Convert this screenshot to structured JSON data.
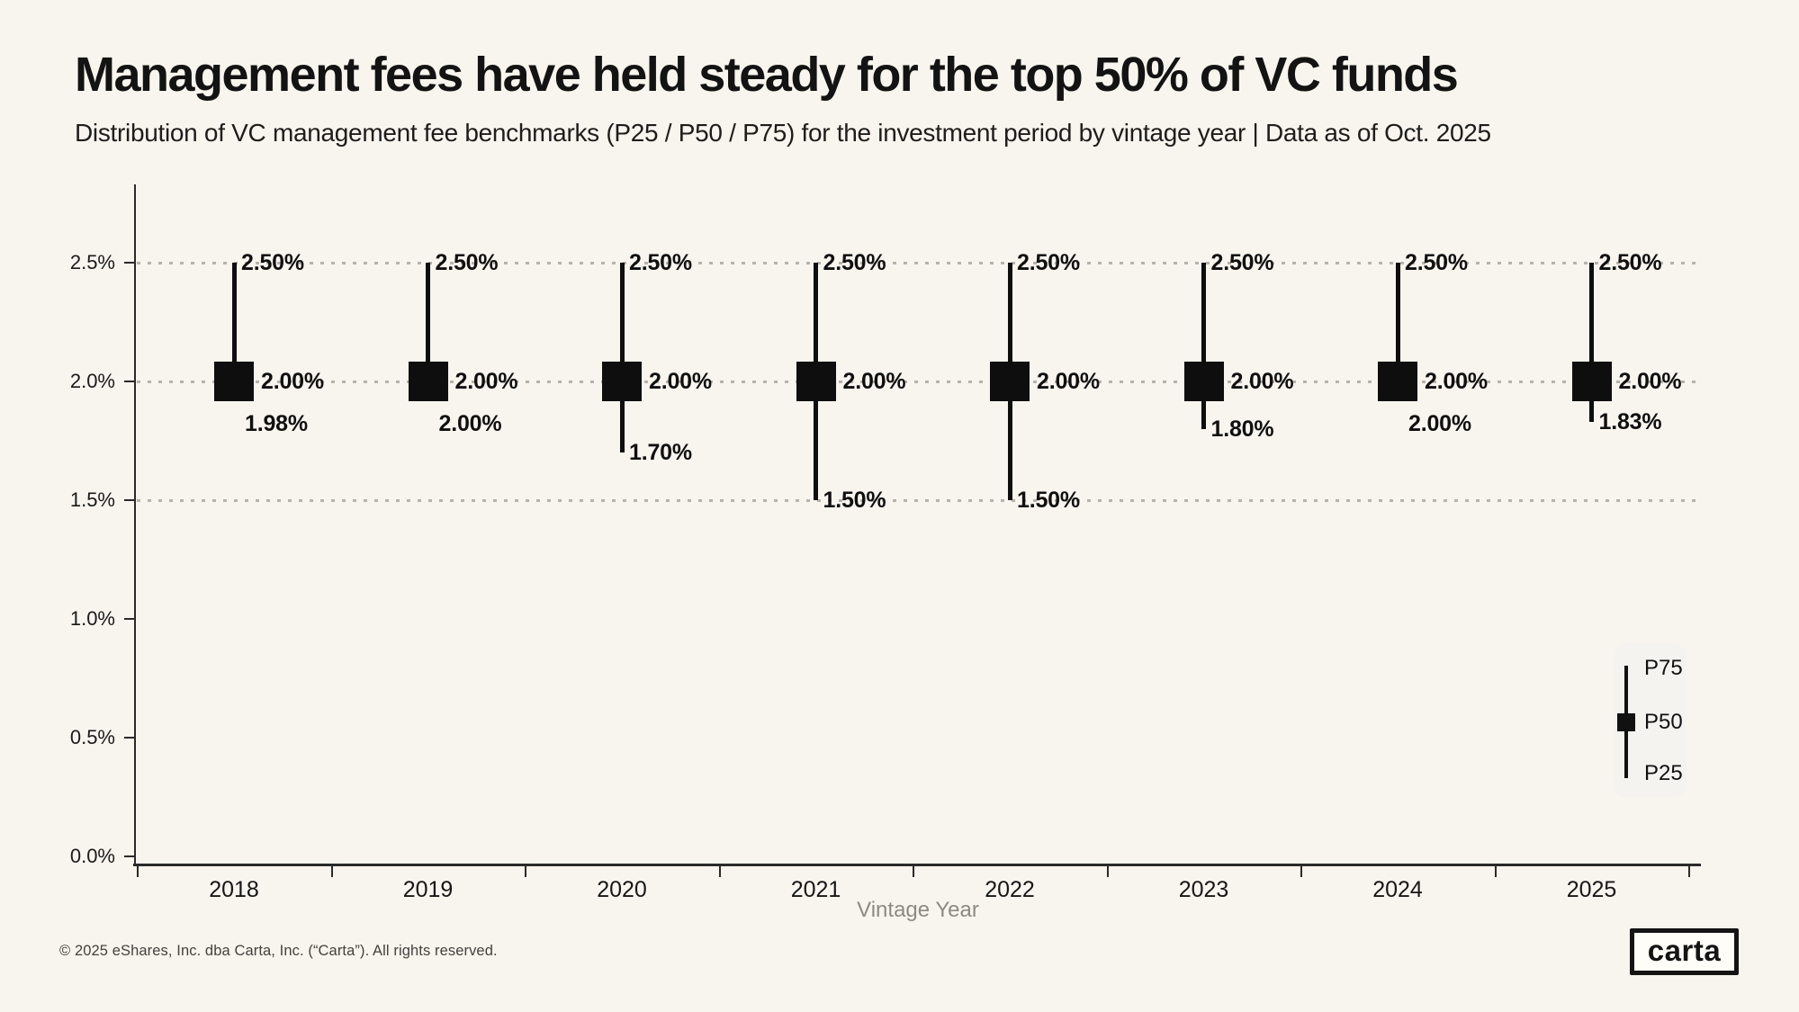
{
  "chart_data": {
    "type": "scatter",
    "subtype": "percentile-range-whisker",
    "title": "Management fees have held steady for the top 50% of VC funds",
    "subtitle": "Distribution of VC management fee benchmarks (P25 / P50 / P75) for the investment period by vintage year | Data as of Oct. 2025",
    "xlabel": "Vintage Year",
    "ylabel": "",
    "unit": "%",
    "ylim": [
      0,
      2.75
    ],
    "yticks": [
      {
        "value": 0.0,
        "label": "0.0%"
      },
      {
        "value": 0.5,
        "label": "0.5%"
      },
      {
        "value": 1.0,
        "label": "1.0%"
      },
      {
        "value": 1.5,
        "label": "1.5%"
      },
      {
        "value": 2.0,
        "label": "2.0%"
      },
      {
        "value": 2.5,
        "label": "2.5%"
      }
    ],
    "gridline_values": [
      1.5,
      2.0,
      2.5
    ],
    "grid_style": "dotted horizontal gridlines only at 1.5 / 2.0 / 2.5",
    "categories": [
      "2018",
      "2019",
      "2020",
      "2021",
      "2022",
      "2023",
      "2024",
      "2025"
    ],
    "series": [
      {
        "name": "P75",
        "values": [
          2.5,
          2.5,
          2.5,
          2.5,
          2.5,
          2.5,
          2.5,
          2.5
        ]
      },
      {
        "name": "P50",
        "values": [
          2.0,
          2.0,
          2.0,
          2.0,
          2.0,
          2.0,
          2.0,
          2.0
        ]
      },
      {
        "name": "P25",
        "values": [
          1.98,
          2.0,
          1.7,
          1.5,
          1.5,
          1.8,
          2.0,
          1.83
        ]
      }
    ],
    "points": [
      {
        "year": "2018",
        "p75": 2.5,
        "p50": 2.0,
        "p25": 1.98,
        "p75_label": "2.50%",
        "p50_label": "2.00%",
        "p25_label": "1.98%",
        "p25_label_below_marker": true
      },
      {
        "year": "2019",
        "p75": 2.5,
        "p50": 2.0,
        "p25": 2.0,
        "p75_label": "2.50%",
        "p50_label": "2.00%",
        "p25_label": "2.00%",
        "p25_label_below_marker": true
      },
      {
        "year": "2020",
        "p75": 2.5,
        "p50": 2.0,
        "p25": 1.7,
        "p75_label": "2.50%",
        "p50_label": "2.00%",
        "p25_label": "1.70%",
        "p25_label_below_marker": false
      },
      {
        "year": "2021",
        "p75": 2.5,
        "p50": 2.0,
        "p25": 1.5,
        "p75_label": "2.50%",
        "p50_label": "2.00%",
        "p25_label": "1.50%",
        "p25_label_below_marker": false
      },
      {
        "year": "2022",
        "p75": 2.5,
        "p50": 2.0,
        "p25": 1.5,
        "p75_label": "2.50%",
        "p50_label": "2.00%",
        "p25_label": "1.50%",
        "p25_label_below_marker": false
      },
      {
        "year": "2023",
        "p75": 2.5,
        "p50": 2.0,
        "p25": 1.8,
        "p75_label": "2.50%",
        "p50_label": "2.00%",
        "p25_label": "1.80%",
        "p25_label_below_marker": false
      },
      {
        "year": "2024",
        "p75": 2.5,
        "p50": 2.0,
        "p25": 2.0,
        "p75_label": "2.50%",
        "p50_label": "2.00%",
        "p25_label": "2.00%",
        "p25_label_below_marker": true
      },
      {
        "year": "2025",
        "p75": 2.5,
        "p50": 2.0,
        "p25": 1.83,
        "p75_label": "2.50%",
        "p50_label": "2.00%",
        "p25_label": "1.83%",
        "p25_label_below_marker": false
      }
    ],
    "legend": {
      "position": "bottom-right",
      "entries": [
        "P75",
        "P50",
        "P25"
      ]
    }
  },
  "footer": {
    "copyright": "© 2025 eShares, Inc. dba Carta, Inc. (“Carta”). All rights reserved.",
    "logo_text": "carta"
  },
  "colors": {
    "background": "#f8f5ee",
    "ink": "#0e0e0e",
    "gridline_dots": "#b7b3ac",
    "axis": "#2a2a2a",
    "muted_axis_title": "#8d8a83",
    "legend_background": "#f4f3f0"
  }
}
